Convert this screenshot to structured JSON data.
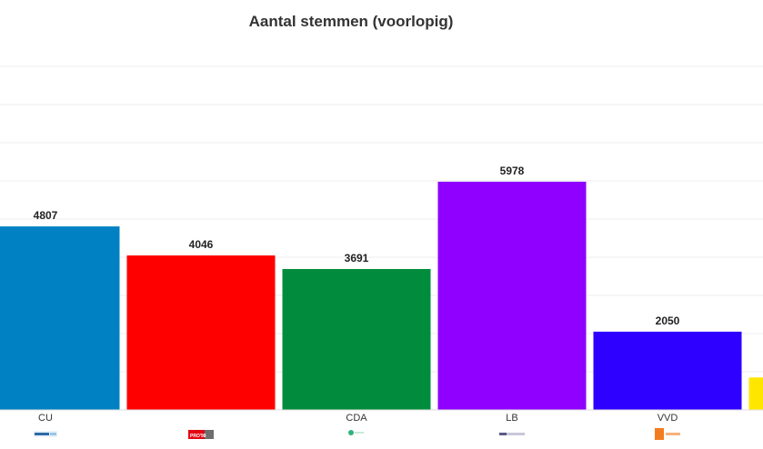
{
  "chart_data": {
    "type": "bar",
    "title": "Aantal stemmen (voorlopig)",
    "xlabel": "",
    "ylabel": "",
    "ylim": [
      0,
      9000
    ],
    "grid": true,
    "categories": [
      "CU",
      "",
      "CDA",
      "LB",
      "VVD",
      ""
    ],
    "values": [
      4807,
      4046,
      3691,
      5978,
      2050,
      850
    ],
    "show_value_labels": [
      true,
      true,
      true,
      true,
      true,
      false
    ],
    "colors": [
      "#0081c3",
      "#ff0000",
      "#008c3c",
      "#8f00ff",
      "#2e00ff",
      "#ffe600"
    ],
    "logos": [
      "christenunie-logo",
      "pro98-logo",
      "cda-logo",
      "lokaal-belang-logo",
      "vvd-logo",
      ""
    ],
    "logo_texts": [
      "",
      "PRO'98",
      "",
      "",
      "",
      ""
    ]
  }
}
